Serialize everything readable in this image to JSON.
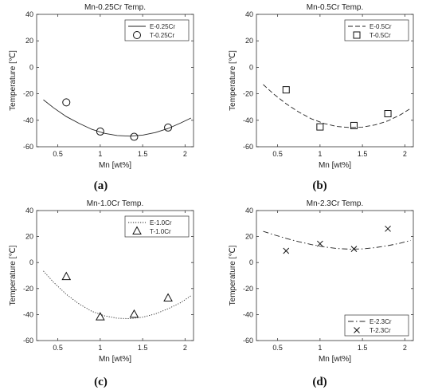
{
  "panel_labels": [
    "(a)",
    "(b)",
    "(c)",
    "(d)"
  ],
  "chart_data": [
    {
      "type": "scatter",
      "title": "Mn-0.25Cr Temp.",
      "xlabel": "Mn [wt%]",
      "ylabel": "Temperature [℃]",
      "xlim": [
        0.25,
        2.1
      ],
      "ylim": [
        -60,
        40
      ],
      "xticks": [
        "0.5",
        "1",
        "1.5",
        "2"
      ],
      "yticks": [
        "-60",
        "-40",
        "-20",
        "0",
        "20",
        "40"
      ],
      "legend_position": "top-right",
      "line_style": "solid",
      "marker": "circle",
      "series": [
        {
          "name": "E-0.25Cr",
          "kind": "line",
          "x": [
            0.33,
            0.45,
            0.6,
            0.75,
            0.9,
            1.05,
            1.2,
            1.35,
            1.5,
            1.65,
            1.8,
            1.95,
            2.07
          ],
          "y": [
            -24.5,
            -30.6,
            -37.2,
            -42.3,
            -46.8,
            -49.9,
            -51.5,
            -52.0,
            -51.2,
            -49.3,
            -46.2,
            -42.0,
            -38.3
          ]
        },
        {
          "name": "T-0.25Cr",
          "kind": "scatter",
          "x": [
            0.6,
            1.0,
            1.4,
            1.8
          ],
          "y": [
            -26.5,
            -48.5,
            -52.5,
            -45.5
          ]
        }
      ]
    },
    {
      "type": "scatter",
      "title": "Mn-0.5Cr Temp.",
      "xlabel": "Mn [wt%]",
      "ylabel": "Temperature [℃]",
      "xlim": [
        0.25,
        2.1
      ],
      "ylim": [
        -60,
        40
      ],
      "xticks": [
        "0.5",
        "1",
        "1.5",
        "2"
      ],
      "yticks": [
        "-60",
        "-40",
        "-20",
        "0",
        "20",
        "40"
      ],
      "legend_position": "top-right",
      "line_style": "dashed",
      "marker": "square",
      "series": [
        {
          "name": "E-0.5Cr",
          "kind": "line",
          "x": [
            0.33,
            0.45,
            0.6,
            0.75,
            0.9,
            1.05,
            1.2,
            1.35,
            1.5,
            1.65,
            1.8,
            1.95,
            2.07
          ],
          "y": [
            -13.0,
            -20.0,
            -27.5,
            -33.8,
            -39.0,
            -42.5,
            -44.7,
            -45.5,
            -45.2,
            -43.5,
            -40.5,
            -35.8,
            -31.0
          ]
        },
        {
          "name": "T-0.5Cr",
          "kind": "scatter",
          "x": [
            0.6,
            1.0,
            1.4,
            1.8
          ],
          "y": [
            -17.0,
            -45.0,
            -44.0,
            -35.0
          ]
        }
      ]
    },
    {
      "type": "scatter",
      "title": "Mn-1.0Cr Temp.",
      "xlabel": "Mn [wt%]",
      "ylabel": "Temperature [℃]",
      "xlim": [
        0.25,
        2.1
      ],
      "ylim": [
        -60,
        40
      ],
      "xticks": [
        "0.5",
        "1",
        "1.5",
        "2"
      ],
      "yticks": [
        "-60",
        "-40",
        "-20",
        "0",
        "20",
        "40"
      ],
      "legend_position": "top-right",
      "line_style": "dotted",
      "marker": "triangle",
      "series": [
        {
          "name": "E-1.0Cr",
          "kind": "line",
          "x": [
            0.33,
            0.45,
            0.6,
            0.75,
            0.9,
            1.05,
            1.2,
            1.35,
            1.5,
            1.65,
            1.8,
            1.95,
            2.07
          ],
          "y": [
            -6.5,
            -15.2,
            -24.5,
            -31.8,
            -37.5,
            -41.0,
            -42.8,
            -43.2,
            -42.0,
            -39.5,
            -35.5,
            -30.8,
            -25.5
          ]
        },
        {
          "name": "T-1.0Cr",
          "kind": "scatter",
          "x": [
            0.6,
            1.0,
            1.4,
            1.8
          ],
          "y": [
            -11.0,
            -42.0,
            -40.0,
            -27.5
          ]
        }
      ]
    },
    {
      "type": "scatter",
      "title": "Mn-2.3Cr Temp.",
      "xlabel": "Mn [wt%]",
      "ylabel": "Temperature [℃]",
      "xlim": [
        0.25,
        2.1
      ],
      "ylim": [
        -60,
        40
      ],
      "xticks": [
        "0.5",
        "1",
        "1.5",
        "2"
      ],
      "yticks": [
        "-60",
        "-40",
        "-20",
        "0",
        "20",
        "40"
      ],
      "legend_position": "bottom-right",
      "line_style": "dashdot",
      "marker": "x",
      "series": [
        {
          "name": "E-2.3Cr",
          "kind": "line",
          "x": [
            0.33,
            0.45,
            0.6,
            0.75,
            0.9,
            1.05,
            1.2,
            1.35,
            1.5,
            1.65,
            1.8,
            1.95,
            2.07
          ],
          "y": [
            24.0,
            21.5,
            18.6,
            16.0,
            13.8,
            12.0,
            10.8,
            10.3,
            10.5,
            11.5,
            13.0,
            15.0,
            17.0
          ]
        },
        {
          "name": "T-2.3Cr",
          "kind": "scatter",
          "x": [
            0.6,
            1.0,
            1.4,
            1.8
          ],
          "y": [
            9.0,
            14.5,
            10.5,
            26.0
          ]
        }
      ]
    }
  ]
}
